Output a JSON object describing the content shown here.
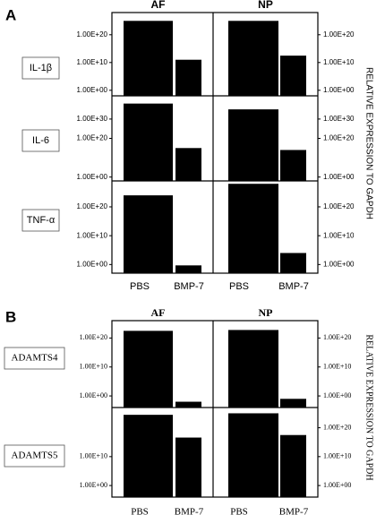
{
  "chart_data": [
    {
      "type": "bar",
      "title": "A",
      "groups": [
        "AF",
        "NP"
      ],
      "categories": [
        "PBS",
        "BMP-7",
        "PBS",
        "BMP-7"
      ],
      "ylabel": "RELATIVE EXPRESSION TO GAPDH",
      "log_scale": true,
      "color": "#000000",
      "rows": [
        {
          "name": "IL-1β",
          "ylim": [
            0.01,
            1e+28
          ],
          "yticks": [
            {
              "value": 1e+20,
              "label": "1.00E+20"
            },
            {
              "value": 10000000000.0,
              "label": "1.00E+10"
            },
            {
              "value": 1,
              "label": "1.00E+00"
            }
          ],
          "y2ticks": [
            {
              "value": 1e+20,
              "label": "1.00E+20"
            },
            {
              "value": 10000000000.0,
              "label": "1.00E+10"
            },
            {
              "value": 1,
              "label": "1.00E+00"
            }
          ],
          "values": [
            1e+25,
            100000000000.0,
            1e+25,
            3000000000000.0
          ]
        },
        {
          "name": "IL-6",
          "ylim": [
            0.01,
            1e+42
          ],
          "yticks": [
            {
              "value": 1e+30,
              "label": "1.00E+30"
            },
            {
              "value": 1e+20,
              "label": "1.00E+20"
            },
            {
              "value": 1,
              "label": "1.00E+00"
            }
          ],
          "y2ticks": [
            {
              "value": 1e+30,
              "label": "1.00E+30"
            },
            {
              "value": 1e+20,
              "label": "1.00E+20"
            },
            {
              "value": 1,
              "label": "1.00E+00"
            }
          ],
          "values": [
            1e+38,
            1000000000000000.0,
            1e+35,
            100000000000000.0
          ]
        },
        {
          "name": "TNF-α",
          "ylim": [
            0.001,
            1e+29
          ],
          "yticks": [
            {
              "value": 1e+20,
              "label": "1.00E+20"
            },
            {
              "value": 10000000000.0,
              "label": "1.00E+10"
            },
            {
              "value": 1,
              "label": "1.00E+00"
            }
          ],
          "y2ticks": [
            {
              "value": 1e+20,
              "label": "1.00E+20"
            },
            {
              "value": 10000000000.0,
              "label": "1.00E+10"
            },
            {
              "value": 1,
              "label": "1.00E+00"
            }
          ],
          "values": [
            1e+24,
            0.5,
            1e+28,
            10000.0
          ]
        }
      ]
    },
    {
      "type": "bar",
      "title": "B",
      "groups": [
        "AF",
        "NP"
      ],
      "categories": [
        "PBS",
        "BMP-7",
        "PBS",
        "BMP-7"
      ],
      "ylabel": "RELATIVE EXPRESSION TO GAPDH",
      "log_scale": true,
      "color": "#000000",
      "rows": [
        {
          "name": "ADAMTS4",
          "ylim": [
            0.0001,
            1e+26
          ],
          "yticks": [
            {
              "value": 1e+20,
              "label": "1.00E+20"
            },
            {
              "value": 10000000000.0,
              "label": "1.00E+10"
            },
            {
              "value": 1,
              "label": "1.00E+00"
            }
          ],
          "y2ticks": [
            {
              "value": 1e+20,
              "label": "1.00E+20"
            },
            {
              "value": 10000000000.0,
              "label": "1.00E+10"
            },
            {
              "value": 1,
              "label": "1.00E+00"
            }
          ],
          "values": [
            3e+22,
            0.01,
            6e+22,
            0.1
          ]
        },
        {
          "name": "ADAMTS5",
          "ylim": [
            0.0001,
            1e+27
          ],
          "yticks": [
            {
              "value": 10000000000.0,
              "label": "1.00E+10"
            },
            {
              "value": 1,
              "label": "1.00E+00"
            }
          ],
          "y2ticks": [
            {
              "value": 1e+20,
              "label": "1.00E+20"
            },
            {
              "value": 10000000000.0,
              "label": "1.00E+10"
            },
            {
              "value": 1,
              "label": "1.00E+00"
            }
          ],
          "values": [
            3e+24,
            4e+16,
            1e+25,
            3e+17
          ]
        }
      ]
    }
  ]
}
